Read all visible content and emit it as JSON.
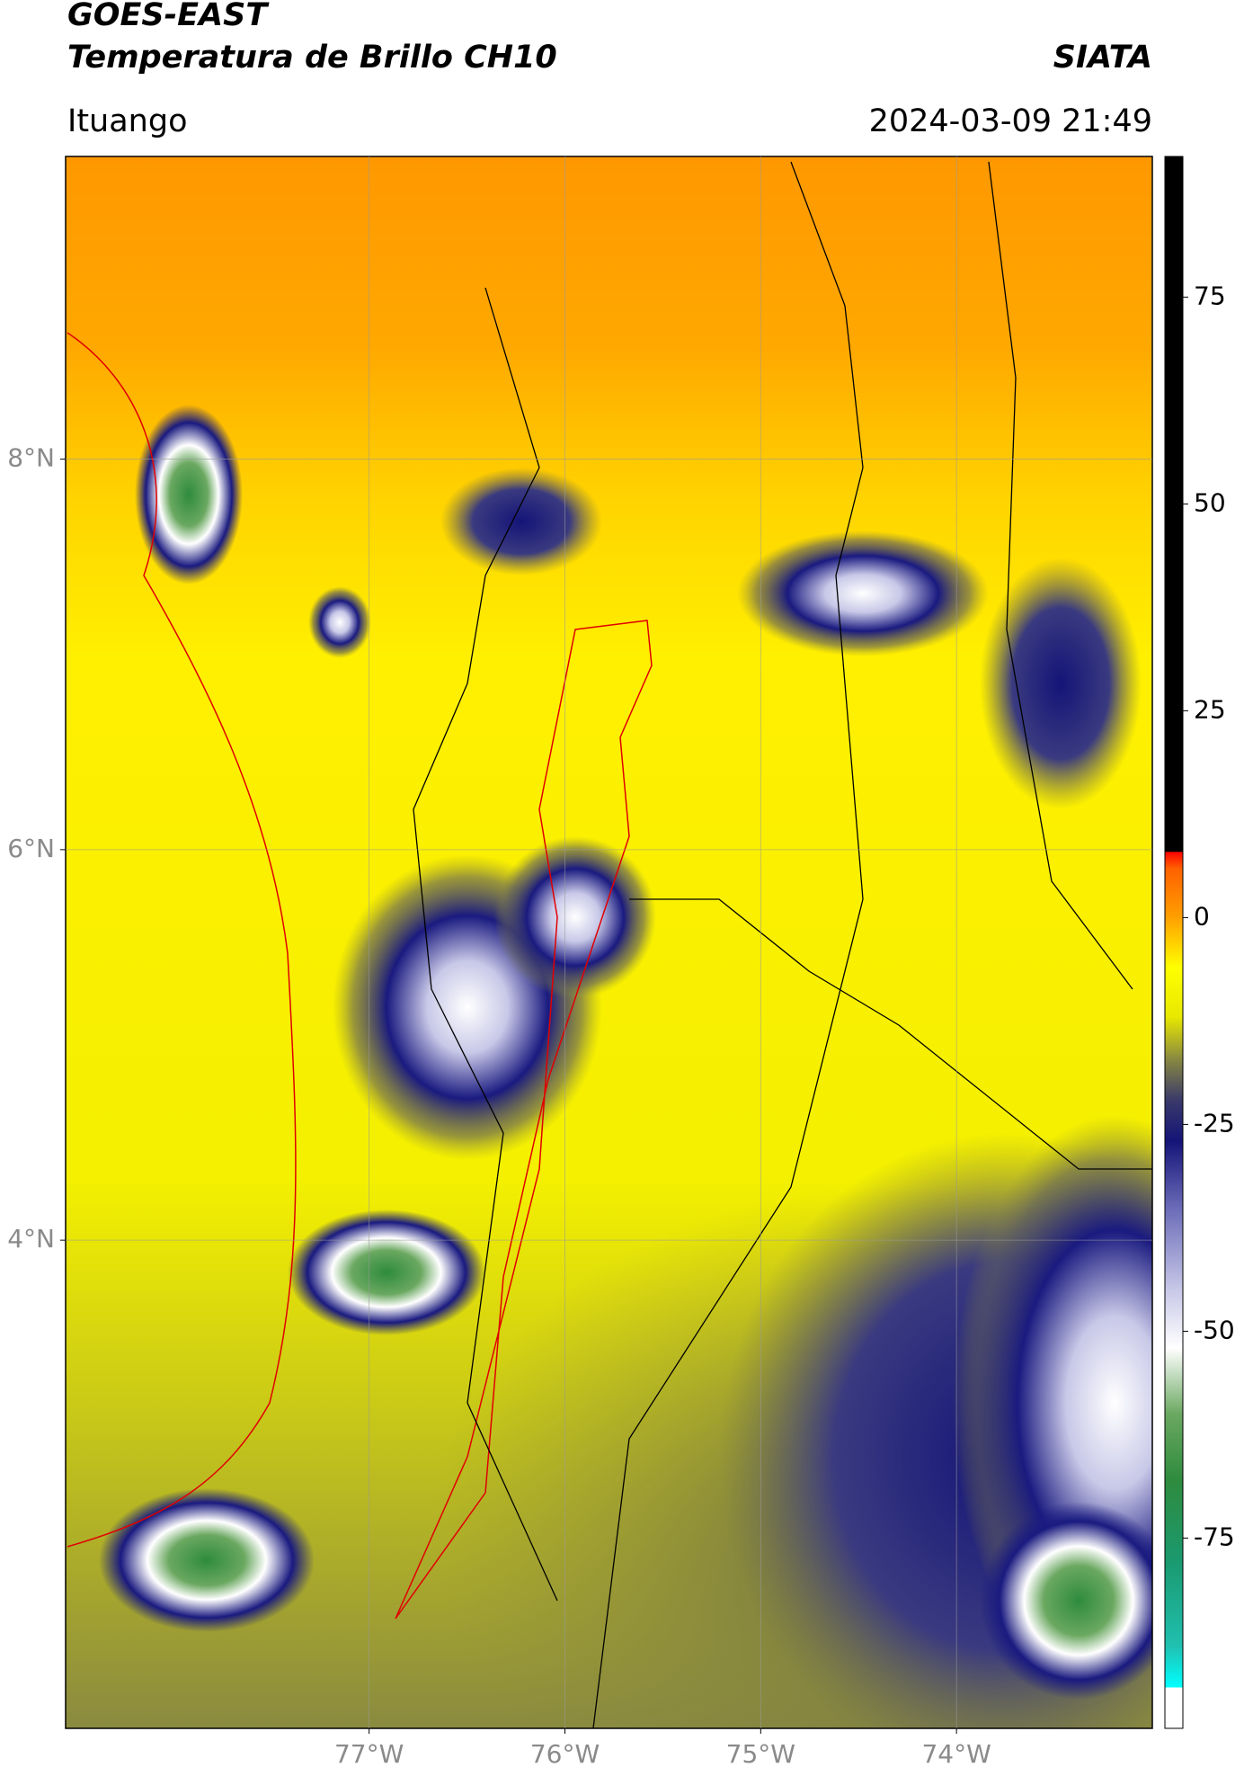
{
  "chart_data": {
    "type": "map",
    "title": "GOES-EAST",
    "subtitle": "Temperatura de Brillo CH10",
    "source": "SIATA",
    "location": "Ituango",
    "timestamp": "2024-03-09 21:49",
    "xlim": [
      -78.55,
      -73.0
    ],
    "ylim": [
      1.5,
      9.55
    ],
    "xticks": [
      {
        "value": -77,
        "label": "77°W"
      },
      {
        "value": -76,
        "label": "76°W"
      },
      {
        "value": -75,
        "label": "75°W"
      },
      {
        "value": -74,
        "label": "74°W"
      }
    ],
    "yticks": [
      {
        "value": 4,
        "label": "4°N"
      },
      {
        "value": 6,
        "label": "6°N"
      },
      {
        "value": 8,
        "label": "8°N"
      }
    ],
    "grid": true,
    "colorbar": {
      "lim": [
        -98,
        92
      ],
      "ticks": [
        -75,
        -50,
        -25,
        0,
        25,
        50,
        75
      ],
      "stops": [
        {
          "value": -98,
          "color": "#ffffff"
        },
        {
          "value": -93,
          "color": "#ffffff"
        },
        {
          "value": -93,
          "color": "#00ffff"
        },
        {
          "value": -88,
          "color": "#20c0b0"
        },
        {
          "value": -78,
          "color": "#1a9a70"
        },
        {
          "value": -68,
          "color": "#2e8b3e"
        },
        {
          "value": -60,
          "color": "#6aa860"
        },
        {
          "value": -52,
          "color": "#ffffff"
        },
        {
          "value": -45,
          "color": "#c8c8e8"
        },
        {
          "value": -35,
          "color": "#6a6ab8"
        },
        {
          "value": -27,
          "color": "#141478"
        },
        {
          "value": -22,
          "color": "#3a3a6a"
        },
        {
          "value": -17,
          "color": "#8a8a40"
        },
        {
          "value": -12,
          "color": "#e8e800"
        },
        {
          "value": -6,
          "color": "#ffff00"
        },
        {
          "value": 0,
          "color": "#ffa000"
        },
        {
          "value": 6,
          "color": "#ff6000"
        },
        {
          "value": 8,
          "color": "#ff0000"
        },
        {
          "value": 8,
          "color": "#000000"
        },
        {
          "value": 92,
          "color": "#000000"
        }
      ]
    }
  }
}
